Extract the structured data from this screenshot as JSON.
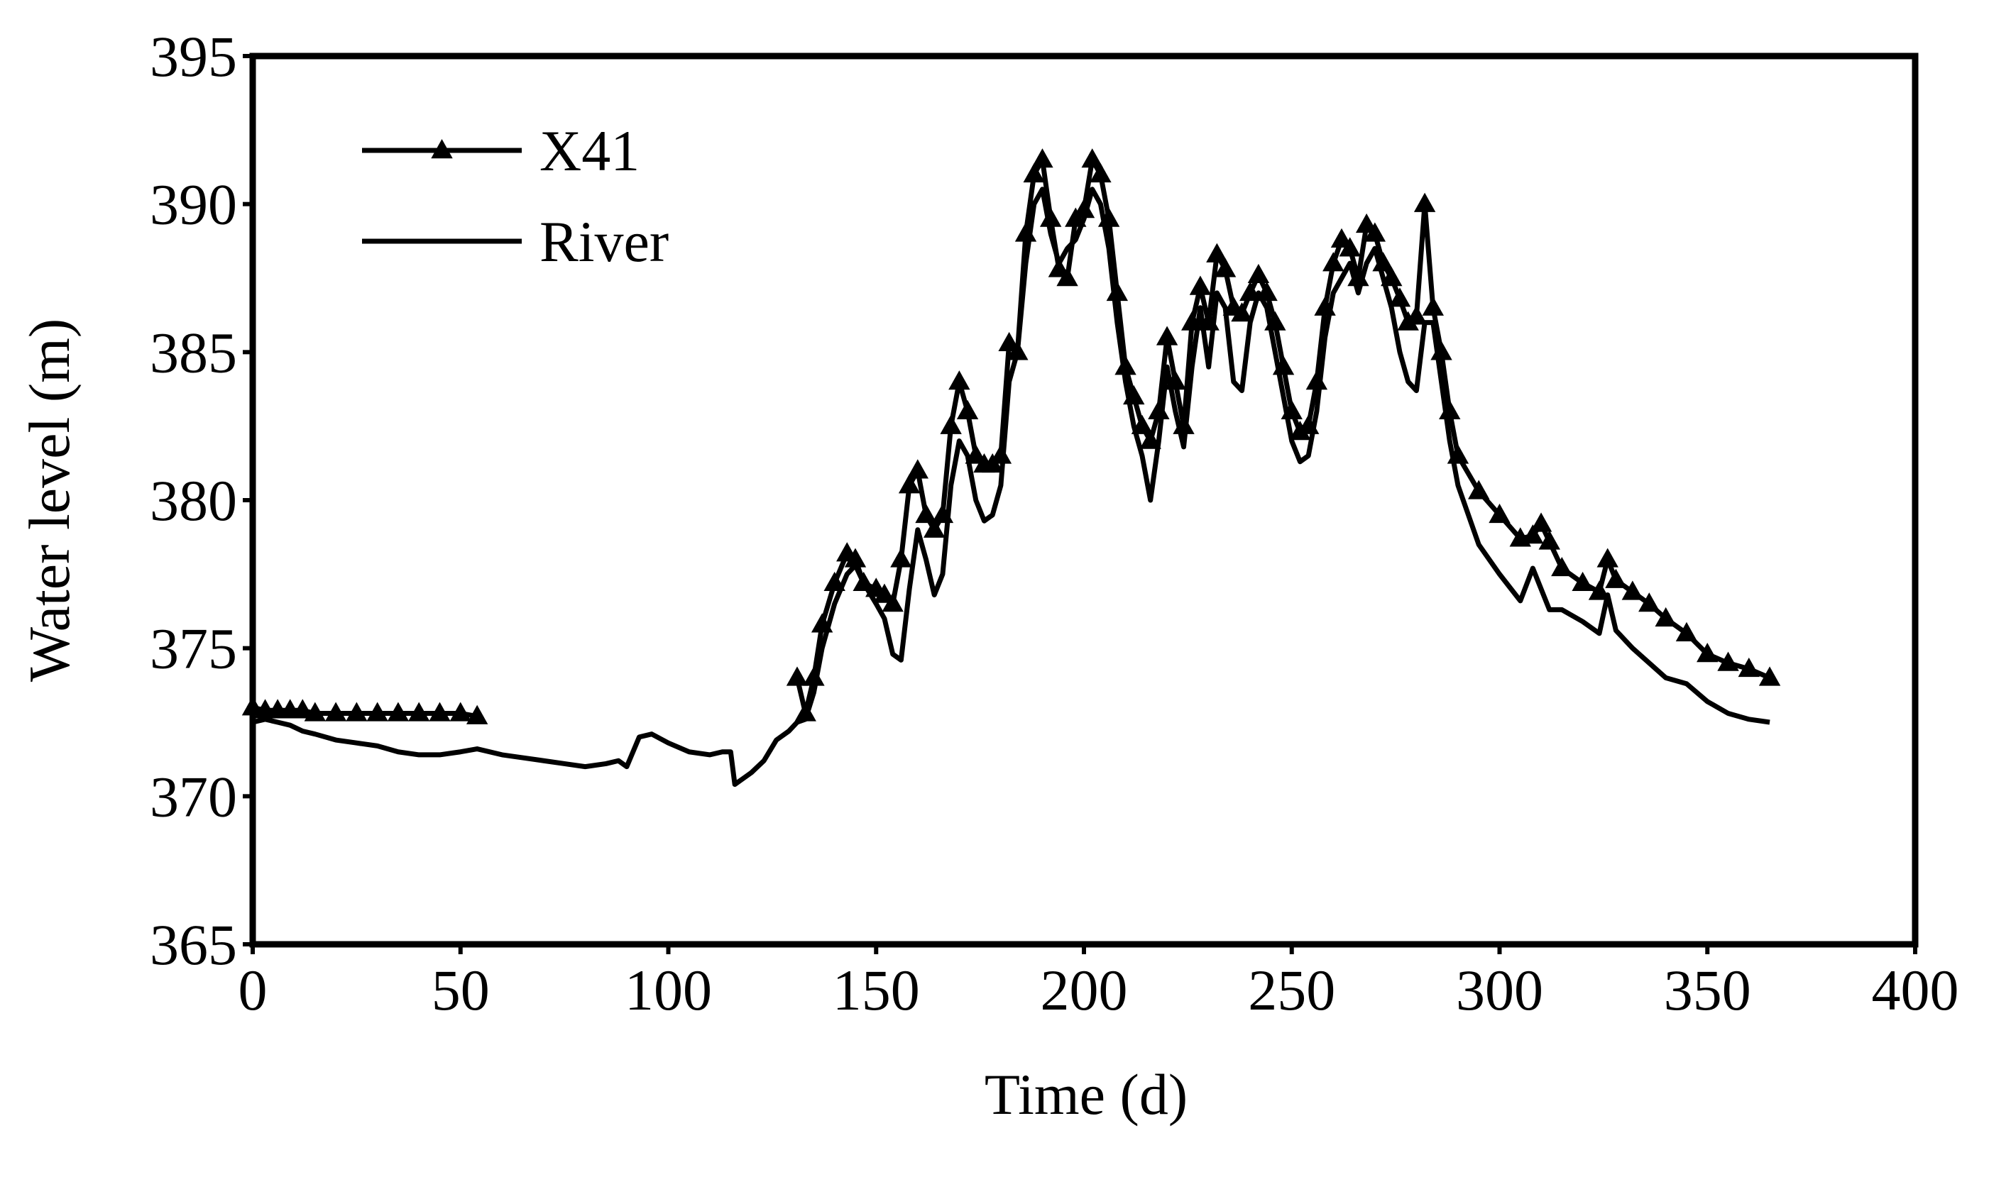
{
  "chart_data": {
    "type": "line",
    "xlabel": "Time (d)",
    "ylabel": "Water level (m)",
    "xlim": [
      0,
      400
    ],
    "xticks": [
      0,
      50,
      100,
      150,
      200,
      250,
      300,
      350,
      400
    ],
    "ylim": [
      365,
      395
    ],
    "yticks": [
      365,
      370,
      375,
      380,
      385,
      390,
      395
    ],
    "grid": false,
    "legend": "upper left",
    "x": [
      0,
      3,
      6,
      9,
      12,
      15,
      20,
      25,
      30,
      35,
      40,
      45,
      50,
      54,
      60,
      65,
      70,
      75,
      80,
      85,
      88,
      90,
      93,
      96,
      100,
      105,
      110,
      113,
      115,
      116,
      118,
      120,
      123,
      126,
      129,
      131,
      133,
      135,
      137,
      140,
      143,
      145,
      147,
      150,
      152,
      154,
      156,
      158,
      160,
      162,
      164,
      166,
      168,
      170,
      172,
      174,
      176,
      178,
      180,
      182,
      184,
      186,
      188,
      190,
      192,
      194,
      196,
      198,
      200,
      202,
      204,
      206,
      208,
      210,
      212,
      214,
      216,
      218,
      220,
      222,
      224,
      226,
      228,
      230,
      232,
      234,
      236,
      238,
      240,
      242,
      244,
      246,
      248,
      250,
      252,
      254,
      256,
      258,
      260,
      262,
      264,
      266,
      268,
      270,
      272,
      274,
      276,
      278,
      280,
      282,
      284,
      286,
      288,
      290,
      295,
      300,
      305,
      308,
      310,
      312,
      315,
      320,
      324,
      326,
      328,
      332,
      336,
      340,
      345,
      350,
      355,
      360,
      365
    ],
    "series": [
      {
        "name": "X41",
        "color": "#000000",
        "marker": "triangle",
        "values": [
          373.0,
          372.9,
          372.9,
          372.9,
          372.9,
          372.8,
          372.8,
          372.8,
          372.8,
          372.8,
          372.8,
          372.8,
          372.8,
          372.7,
          null,
          null,
          null,
          null,
          null,
          null,
          null,
          null,
          null,
          null,
          null,
          null,
          null,
          null,
          null,
          null,
          null,
          null,
          null,
          null,
          null,
          374.0,
          372.8,
          374.0,
          375.8,
          377.2,
          378.2,
          378.0,
          377.2,
          377.0,
          376.8,
          376.5,
          378.0,
          380.5,
          381.0,
          379.5,
          379.0,
          379.5,
          382.5,
          384.0,
          383.0,
          381.5,
          381.2,
          381.2,
          381.5,
          385.3,
          385.0,
          389.0,
          391.0,
          391.5,
          389.5,
          387.8,
          387.5,
          389.5,
          389.8,
          391.5,
          391.0,
          389.5,
          387.0,
          384.5,
          383.5,
          382.5,
          382.0,
          383.0,
          385.5,
          384.0,
          382.5,
          386.0,
          387.2,
          386.0,
          388.3,
          387.8,
          386.5,
          386.3,
          387.0,
          387.6,
          387.0,
          386.0,
          384.5,
          383.0,
          382.3,
          382.5,
          384.0,
          386.5,
          388.0,
          388.8,
          388.5,
          387.5,
          389.3,
          389.0,
          388.0,
          387.5,
          386.8,
          386.0,
          386.2,
          390.0,
          386.5,
          385.0,
          383.0,
          381.5,
          380.3,
          379.5,
          378.7,
          378.8,
          379.2,
          378.6,
          377.7,
          377.2,
          376.9,
          378.0,
          377.3,
          376.9,
          376.5,
          376.0,
          375.5,
          374.8,
          374.5,
          374.3,
          374.0
        ]
      },
      {
        "name": "River",
        "color": "#000000",
        "marker": "none",
        "values": [
          372.5,
          372.6,
          372.5,
          372.4,
          372.2,
          372.1,
          371.9,
          371.8,
          371.7,
          371.5,
          371.4,
          371.4,
          371.5,
          371.6,
          371.4,
          371.3,
          371.2,
          371.1,
          371.0,
          371.1,
          371.2,
          371.0,
          372.0,
          372.1,
          371.8,
          371.5,
          371.4,
          371.5,
          371.5,
          370.4,
          370.6,
          370.8,
          371.2,
          371.9,
          372.2,
          372.5,
          372.6,
          373.5,
          375.0,
          376.5,
          377.5,
          377.8,
          377.2,
          376.5,
          376.0,
          374.8,
          374.6,
          377.0,
          379.0,
          378.0,
          376.8,
          377.5,
          380.5,
          382.0,
          381.5,
          380.0,
          379.3,
          379.5,
          380.5,
          384.0,
          385.0,
          388.0,
          390.0,
          390.5,
          389.0,
          388.0,
          388.5,
          388.8,
          389.5,
          390.5,
          390.0,
          388.5,
          386.0,
          384.0,
          382.5,
          381.5,
          380.0,
          382.0,
          384.5,
          383.0,
          381.8,
          384.5,
          386.5,
          384.5,
          387.0,
          386.5,
          384.0,
          383.7,
          386.0,
          387.0,
          386.5,
          385.0,
          383.5,
          382.0,
          381.3,
          381.5,
          383.0,
          385.5,
          387.0,
          387.5,
          388.0,
          387.0,
          388.0,
          388.5,
          387.5,
          386.5,
          385.0,
          384.0,
          383.7,
          386.0,
          386.0,
          384.0,
          382.0,
          380.5,
          378.5,
          377.5,
          376.6,
          377.7,
          377.0,
          376.3,
          376.3,
          375.9,
          375.5,
          376.8,
          375.6,
          375.0,
          374.5,
          374.0,
          373.8,
          373.2,
          372.8,
          372.6,
          372.5
        ]
      }
    ]
  }
}
